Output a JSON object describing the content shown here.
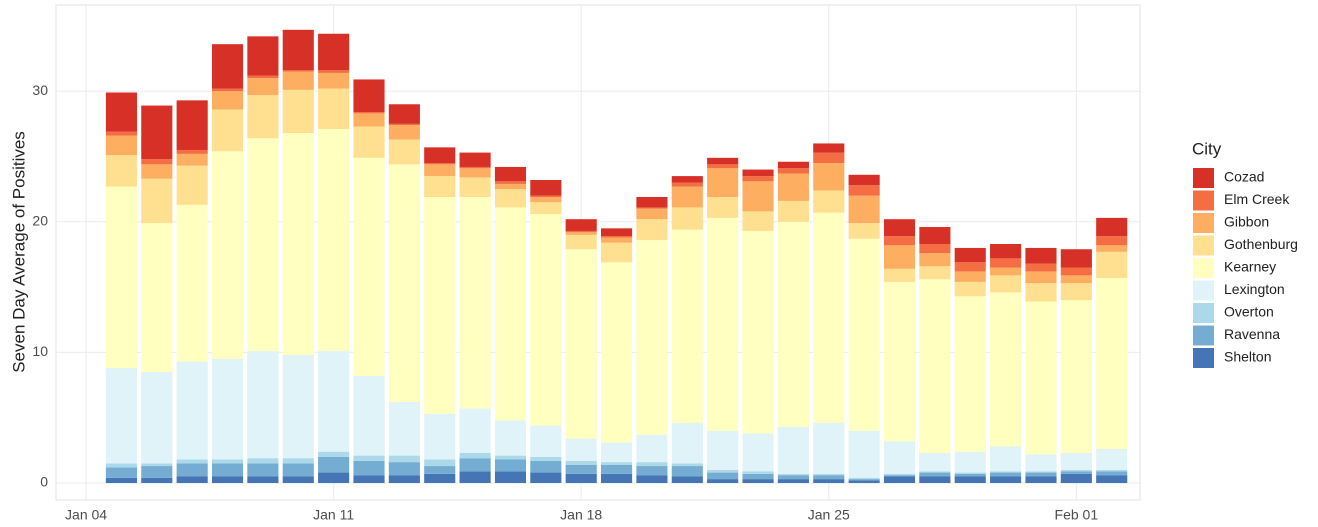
{
  "chart_data": {
    "type": "stacked-bar",
    "y_label": "Seven Day Average of Positives",
    "legend_title": "City",
    "legend": "right",
    "grid": true,
    "x": [
      5,
      6,
      7,
      8,
      9,
      10,
      11,
      12,
      13,
      14,
      15,
      16,
      17,
      18,
      19,
      20,
      21,
      22,
      23,
      24,
      25,
      26,
      27,
      28,
      29,
      30,
      31,
      32,
      33
    ],
    "xlim": [
      3.15,
      33.8
    ],
    "xticks": [
      {
        "value": 4,
        "label": "Jan 04"
      },
      {
        "value": 11,
        "label": "Jan 11"
      },
      {
        "value": 18,
        "label": "Jan 18"
      },
      {
        "value": 25,
        "label": "Jan 25"
      },
      {
        "value": 32,
        "label": "Feb 01"
      }
    ],
    "ylim": [
      -1.3,
      36.6
    ],
    "yticks": [
      0,
      10,
      20,
      30
    ],
    "series": [
      {
        "name": "Shelton",
        "color": "#4575b4",
        "values": [
          0.4,
          0.4,
          0.5,
          0.5,
          0.5,
          0.5,
          0.8,
          0.6,
          0.6,
          0.7,
          0.9,
          0.9,
          0.8,
          0.7,
          0.7,
          0.6,
          0.5,
          0.3,
          0.3,
          0.3,
          0.3,
          0.2,
          0.5,
          0.5,
          0.5,
          0.5,
          0.5,
          0.7,
          0.6
        ]
      },
      {
        "name": "Ravenna",
        "color": "#74add1",
        "values": [
          0.8,
          0.9,
          1.0,
          1.0,
          1.0,
          1.0,
          1.2,
          1.1,
          1.0,
          0.6,
          1.0,
          0.9,
          0.9,
          0.7,
          0.7,
          0.7,
          0.8,
          0.5,
          0.4,
          0.3,
          0.3,
          0.1,
          0.1,
          0.3,
          0.2,
          0.3,
          0.3,
          0.2,
          0.3
        ]
      },
      {
        "name": "Overton",
        "color": "#abd9e9",
        "values": [
          0.3,
          0.2,
          0.3,
          0.3,
          0.4,
          0.4,
          0.4,
          0.4,
          0.5,
          0.5,
          0.4,
          0.3,
          0.3,
          0.3,
          0.2,
          0.3,
          0.2,
          0.2,
          0.2,
          0.1,
          0.1,
          0.1,
          0.1,
          0.1,
          0.1,
          0.1,
          0.1,
          0.1,
          0.1
        ]
      },
      {
        "name": "Lexington",
        "color": "#e0f3f8",
        "values": [
          7.3,
          7.0,
          7.5,
          7.7,
          8.2,
          7.9,
          7.7,
          6.1,
          4.1,
          3.5,
          3.4,
          2.7,
          2.4,
          1.7,
          1.5,
          2.1,
          3.1,
          3.0,
          2.9,
          3.6,
          3.9,
          3.6,
          2.5,
          1.4,
          1.6,
          1.9,
          1.3,
          1.3,
          1.6
        ]
      },
      {
        "name": "Kearney",
        "color": "#ffffbf",
        "values": [
          13.9,
          11.4,
          12.0,
          15.9,
          16.3,
          17.0,
          17.0,
          16.7,
          18.2,
          16.6,
          16.2,
          16.3,
          16.2,
          14.5,
          13.8,
          14.9,
          14.8,
          16.3,
          15.5,
          15.7,
          16.1,
          14.7,
          12.2,
          13.3,
          11.9,
          11.8,
          11.7,
          11.7,
          13.1
        ]
      },
      {
        "name": "Gothenburg",
        "color": "#fee090",
        "values": [
          2.4,
          3.4,
          3.0,
          3.2,
          3.3,
          3.3,
          3.1,
          2.4,
          1.9,
          1.6,
          1.5,
          1.4,
          0.9,
          1.1,
          1.5,
          1.6,
          1.7,
          1.6,
          1.5,
          1.6,
          1.7,
          1.2,
          1.0,
          1.0,
          1.1,
          1.3,
          1.4,
          1.3,
          2.0
        ]
      },
      {
        "name": "Gibbon",
        "color": "#fdae61",
        "values": [
          1.5,
          1.1,
          0.9,
          1.4,
          1.3,
          1.4,
          1.2,
          1.0,
          1.1,
          0.9,
          0.7,
          0.4,
          0.4,
          0.2,
          0.4,
          0.8,
          1.6,
          2.2,
          2.3,
          2.1,
          2.1,
          2.1,
          1.8,
          1.0,
          0.8,
          0.6,
          0.9,
          0.6,
          0.5
        ]
      },
      {
        "name": "Elm Creek",
        "color": "#f46d43",
        "values": [
          0.3,
          0.4,
          0.3,
          0.2,
          0.2,
          0.1,
          0.2,
          0.1,
          0.1,
          0.1,
          0.1,
          0.2,
          0.1,
          0.1,
          0.1,
          0.1,
          0.3,
          0.3,
          0.4,
          0.4,
          0.8,
          0.8,
          0.7,
          0.7,
          0.7,
          0.7,
          0.6,
          0.6,
          0.7
        ]
      },
      {
        "name": "Cozad",
        "color": "#d73027",
        "values": [
          3.0,
          4.1,
          3.8,
          3.4,
          3.0,
          3.1,
          2.8,
          2.5,
          1.5,
          1.2,
          1.1,
          1.1,
          1.2,
          0.9,
          0.6,
          0.8,
          0.5,
          0.5,
          0.5,
          0.5,
          0.7,
          0.8,
          1.3,
          1.3,
          1.1,
          1.1,
          1.2,
          1.4,
          1.4
        ]
      }
    ]
  }
}
